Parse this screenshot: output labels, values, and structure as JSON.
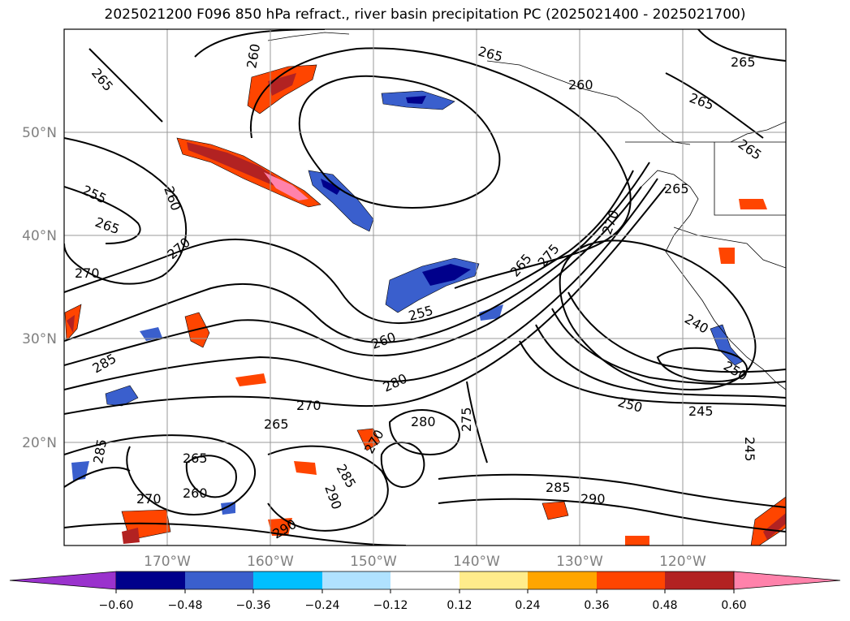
{
  "title": "2025021200 F096 850 hPa refract., river basin precipitation PC (2025021400 - 2025021700)",
  "lat_labels": [
    "50°N",
    "40°N",
    "30°N",
    "20°N"
  ],
  "lon_labels": [
    "170°W",
    "160°W",
    "150°W",
    "140°W",
    "130°W",
    "120°W"
  ],
  "colorbar": {
    "colors": [
      "#9a32cd",
      "#00008b",
      "#3a5fcd",
      "#00bfff",
      "#b0e2ff",
      "#ffffff",
      "#ffec8b",
      "#ffa500",
      "#ff4500",
      "#b22222",
      "#ff82ab"
    ],
    "tick_labels": [
      "−0.60",
      "−0.48",
      "−0.36",
      "−0.24",
      "−0.12",
      "0.12",
      "0.24",
      "0.36",
      "0.48",
      "0.60"
    ]
  },
  "contour_labels": [
    "265",
    "260",
    "265",
    "265",
    "265",
    "265",
    "260",
    "255",
    "265",
    "270",
    "270",
    "265",
    "275",
    "265",
    "260",
    "270",
    "255",
    "240",
    "260",
    "280",
    "270",
    "285",
    "265",
    "280",
    "275",
    "250",
    "245",
    "285",
    "265",
    "260",
    "270",
    "270",
    "285",
    "290",
    "290",
    "285",
    "290",
    "245",
    "250"
  ]
}
